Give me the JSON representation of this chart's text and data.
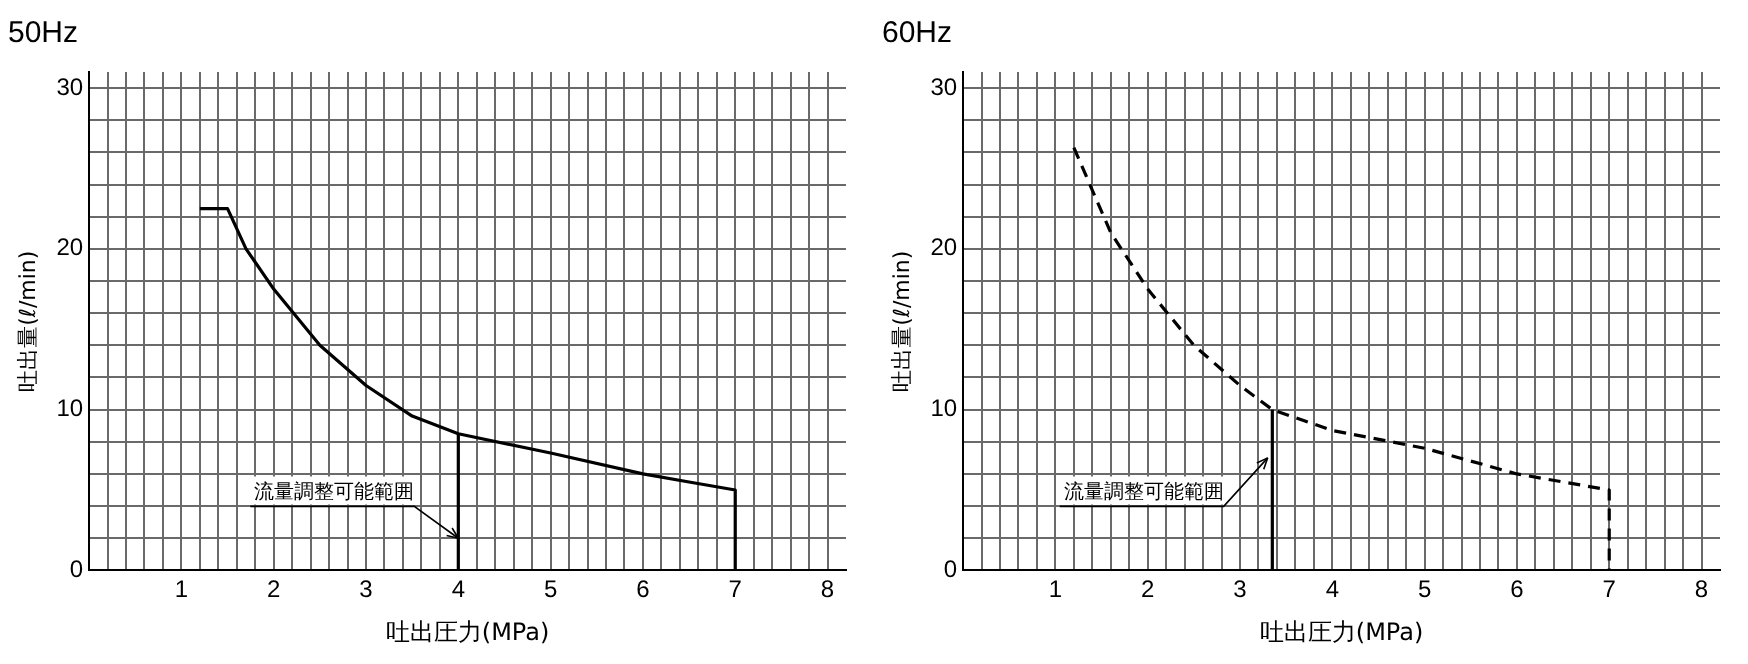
{
  "chart_data": [
    {
      "type": "line",
      "title": "50Hz",
      "xlabel": "吐出圧力(MPa)",
      "ylabel": "吐出量(ℓ/min)",
      "xlim": [
        0,
        8.2
      ],
      "ylim": [
        0,
        31
      ],
      "grid": true,
      "legend": false,
      "marker": "none",
      "xticks": [
        {
          "value": 0.2,
          "label": null
        },
        {
          "value": 0.4,
          "label": null
        },
        {
          "value": 0.6,
          "label": null
        },
        {
          "value": 0.8,
          "label": null
        },
        1,
        {
          "value": 1.2,
          "label": null
        },
        {
          "value": 1.4,
          "label": null
        },
        {
          "value": 1.6,
          "label": null
        },
        {
          "value": 1.8,
          "label": null
        },
        2,
        {
          "value": 2.2,
          "label": null
        },
        {
          "value": 2.4,
          "label": null
        },
        {
          "value": 2.6,
          "label": null
        },
        {
          "value": 2.8,
          "label": null
        },
        3,
        {
          "value": 3.2,
          "label": null
        },
        {
          "value": 3.4,
          "label": null
        },
        {
          "value": 3.6,
          "label": null
        },
        {
          "value": 3.8,
          "label": null
        },
        4,
        {
          "value": 4.2,
          "label": null
        },
        {
          "value": 4.4,
          "label": null
        },
        {
          "value": 4.6,
          "label": null
        },
        {
          "value": 4.8,
          "label": null
        },
        5,
        {
          "value": 5.2,
          "label": null
        },
        {
          "value": 5.4,
          "label": null
        },
        {
          "value": 5.6,
          "label": null
        },
        {
          "value": 5.8,
          "label": null
        },
        6,
        {
          "value": 6.2,
          "label": null
        },
        {
          "value": 6.4,
          "label": null
        },
        {
          "value": 6.6,
          "label": null
        },
        {
          "value": 6.8,
          "label": null
        },
        7,
        {
          "value": 7.2,
          "label": null
        },
        {
          "value": 7.4,
          "label": null
        },
        {
          "value": 7.6,
          "label": null
        },
        {
          "value": 7.8,
          "label": null
        },
        8
      ],
      "yticks": [
        0,
        {
          "value": 2,
          "label": null
        },
        {
          "value": 4,
          "label": null
        },
        {
          "value": 6,
          "label": null
        },
        {
          "value": 8,
          "label": null
        },
        10,
        {
          "value": 12,
          "label": null
        },
        {
          "value": 14,
          "label": null
        },
        {
          "value": 16,
          "label": null
        },
        {
          "value": 18,
          "label": null
        },
        20,
        {
          "value": 22,
          "label": null
        },
        {
          "value": 24,
          "label": null
        },
        {
          "value": 26,
          "label": null
        },
        {
          "value": 28,
          "label": null
        },
        30
      ],
      "series": [
        {
          "type": "line",
          "color": "#000000",
          "line_style": "solid",
          "x": [
            1.2,
            1.5,
            1.7,
            2,
            2.5,
            3,
            3.5,
            4,
            5,
            6,
            6.5,
            7,
            7
          ],
          "values": [
            22.5,
            22.5,
            20,
            17.5,
            14,
            11.5,
            9.6,
            8.5,
            7.3,
            6,
            5.5,
            5,
            0
          ]
        },
        {
          "type": "line",
          "color": "#000000",
          "line_style": "solid",
          "x": [
            4,
            4
          ],
          "values": [
            0,
            8.5
          ]
        }
      ],
      "annotations": [
        {
          "text": "流量調整可能範囲",
          "x": 4,
          "y": 2
        }
      ]
    },
    {
      "type": "line",
      "title": "60Hz",
      "xlabel": "吐出圧力(MPa)",
      "ylabel": "吐出量(ℓ/min)",
      "xlim": [
        0,
        8.2
      ],
      "ylim": [
        0,
        31
      ],
      "grid": true,
      "legend": false,
      "marker": "none",
      "xticks": [
        {
          "value": 0.2,
          "label": null
        },
        {
          "value": 0.4,
          "label": null
        },
        {
          "value": 0.6,
          "label": null
        },
        {
          "value": 0.8,
          "label": null
        },
        1,
        {
          "value": 1.2,
          "label": null
        },
        {
          "value": 1.4,
          "label": null
        },
        {
          "value": 1.6,
          "label": null
        },
        {
          "value": 1.8,
          "label": null
        },
        2,
        {
          "value": 2.2,
          "label": null
        },
        {
          "value": 2.4,
          "label": null
        },
        {
          "value": 2.6,
          "label": null
        },
        {
          "value": 2.8,
          "label": null
        },
        3,
        {
          "value": 3.2,
          "label": null
        },
        {
          "value": 3.4,
          "label": null
        },
        {
          "value": 3.6,
          "label": null
        },
        {
          "value": 3.8,
          "label": null
        },
        4,
        {
          "value": 4.2,
          "label": null
        },
        {
          "value": 4.4,
          "label": null
        },
        {
          "value": 4.6,
          "label": null
        },
        {
          "value": 4.8,
          "label": null
        },
        5,
        {
          "value": 5.2,
          "label": null
        },
        {
          "value": 5.4,
          "label": null
        },
        {
          "value": 5.6,
          "label": null
        },
        {
          "value": 5.8,
          "label": null
        },
        6,
        {
          "value": 6.2,
          "label": null
        },
        {
          "value": 6.4,
          "label": null
        },
        {
          "value": 6.6,
          "label": null
        },
        {
          "value": 6.8,
          "label": null
        },
        7,
        {
          "value": 7.2,
          "label": null
        },
        {
          "value": 7.4,
          "label": null
        },
        {
          "value": 7.6,
          "label": null
        },
        {
          "value": 7.8,
          "label": null
        },
        8
      ],
      "yticks": [
        0,
        {
          "value": 2,
          "label": null
        },
        {
          "value": 4,
          "label": null
        },
        {
          "value": 6,
          "label": null
        },
        {
          "value": 8,
          "label": null
        },
        10,
        {
          "value": 12,
          "label": null
        },
        {
          "value": 14,
          "label": null
        },
        {
          "value": 16,
          "label": null
        },
        {
          "value": 18,
          "label": null
        },
        20,
        {
          "value": 22,
          "label": null
        },
        {
          "value": 24,
          "label": null
        },
        {
          "value": 26,
          "label": null
        },
        {
          "value": 28,
          "label": null
        },
        30
      ],
      "series": [
        {
          "type": "line",
          "color": "#000000",
          "line_style": "dashed",
          "x": [
            1.2,
            1.6,
            2,
            2.5,
            3,
            3.35,
            4,
            5,
            6,
            7,
            7
          ],
          "values": [
            26.3,
            21,
            17.5,
            14,
            11.5,
            10,
            8.7,
            7.6,
            6,
            5,
            0
          ]
        },
        {
          "type": "line",
          "color": "#000000",
          "line_style": "solid",
          "x": [
            3.35,
            3.35
          ],
          "values": [
            0,
            10
          ]
        }
      ],
      "annotations": [
        {
          "text": "流量調整可能範囲",
          "x": 3.3,
          "y": 7
        }
      ]
    }
  ]
}
